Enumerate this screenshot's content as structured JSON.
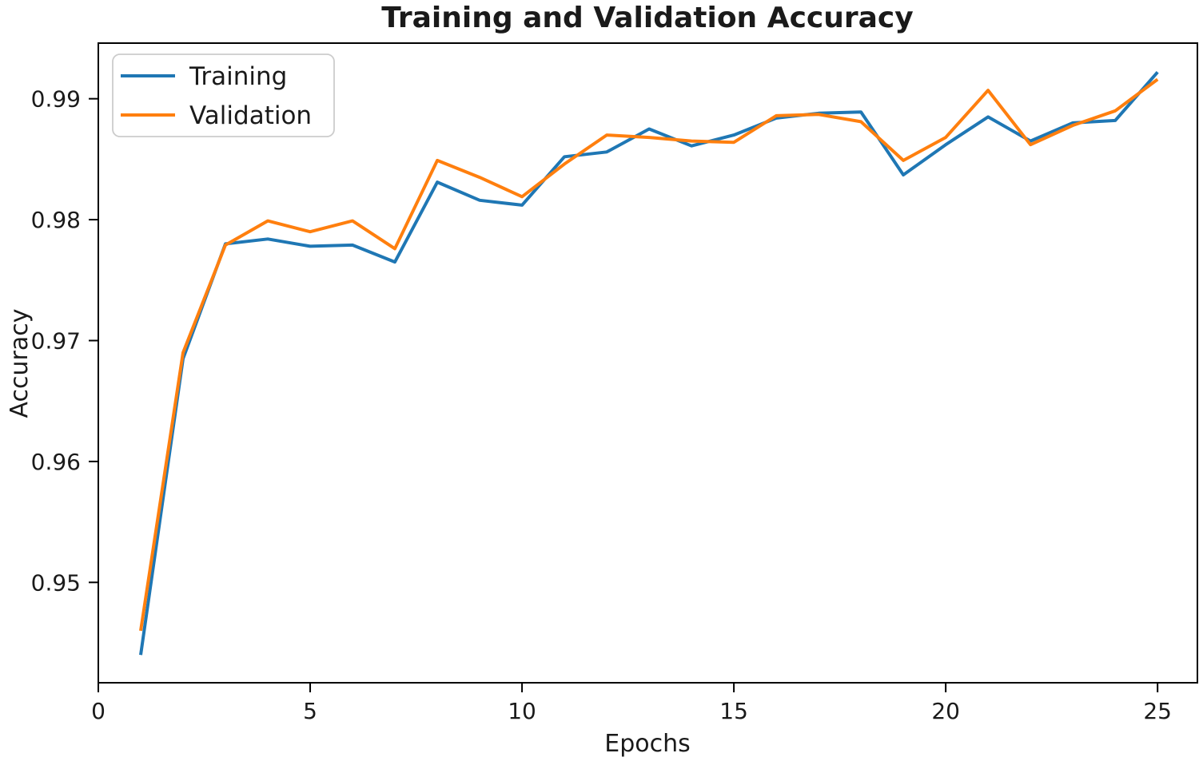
{
  "figure": {
    "background": "#ffffff",
    "spine_color": "#000000",
    "text_color": "#1a1a1a"
  },
  "chart_data": {
    "type": "line",
    "title": "Training and Validation Accuracy",
    "xlabel": "Epochs",
    "ylabel": "Accuracy",
    "x": [
      1,
      2,
      3,
      4,
      5,
      6,
      7,
      8,
      9,
      10,
      11,
      12,
      13,
      14,
      15,
      16,
      17,
      18,
      19,
      20,
      21,
      22,
      23,
      24,
      25
    ],
    "series": [
      {
        "name": "Training",
        "color": "#1f77b4",
        "values": [
          0.944,
          0.9685,
          0.978,
          0.9784,
          0.9778,
          0.9779,
          0.9765,
          0.9831,
          0.9816,
          0.9812,
          0.9852,
          0.9856,
          0.9875,
          0.9861,
          0.987,
          0.9884,
          0.9888,
          0.9889,
          0.9837,
          0.9862,
          0.9885,
          0.9865,
          0.988,
          0.9882,
          0.9922
        ]
      },
      {
        "name": "Validation",
        "color": "#ff7f0e",
        "values": [
          0.946,
          0.969,
          0.9779,
          0.9799,
          0.979,
          0.9799,
          0.9776,
          0.9849,
          0.9835,
          0.9819,
          0.9846,
          0.987,
          0.9868,
          0.9865,
          0.9864,
          0.9886,
          0.9887,
          0.9881,
          0.9849,
          0.9868,
          0.9907,
          0.9862,
          0.9878,
          0.989,
          0.9916
        ]
      }
    ],
    "xlim": [
      0,
      25.94
    ],
    "ylim": [
      0.9417,
      0.9946
    ],
    "xticks": [
      0,
      5,
      10,
      15,
      20,
      25
    ],
    "yticks": [
      0.95,
      0.96,
      0.97,
      0.98,
      0.99
    ],
    "grid": false,
    "legend_position": "upper left",
    "line_width": 4
  }
}
